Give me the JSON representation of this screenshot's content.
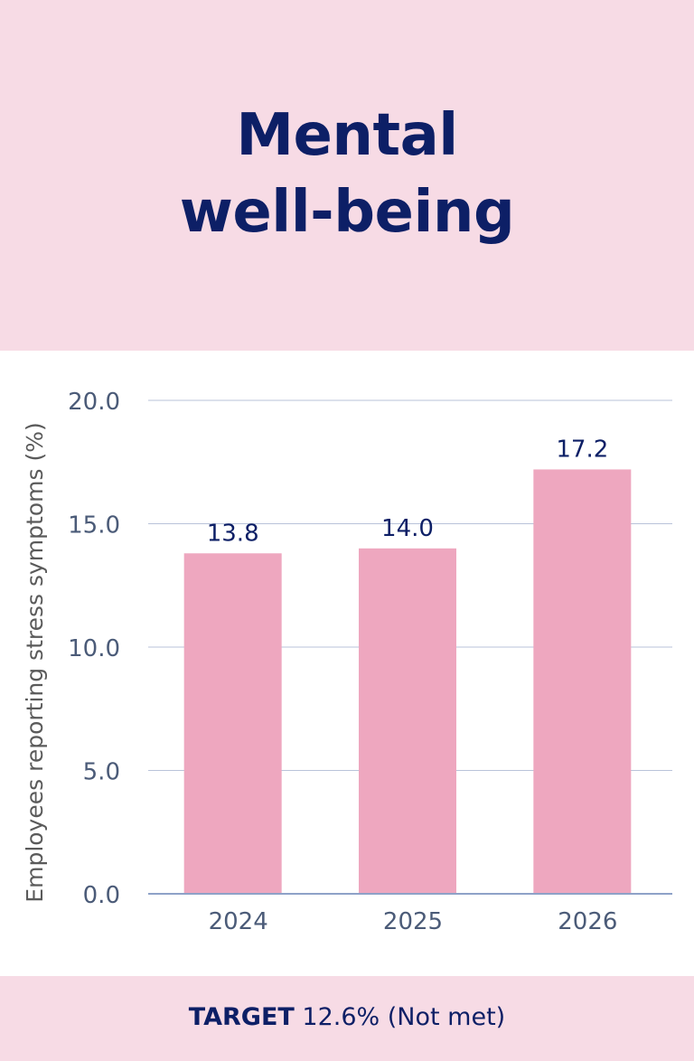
{
  "title_lines": [
    "Mental",
    "well-being"
  ],
  "chart_data": {
    "type": "bar",
    "categories": [
      "2024",
      "2025",
      "2026"
    ],
    "values": [
      13.8,
      14.0,
      17.2
    ],
    "value_labels": [
      "13.8",
      "14.0",
      "17.2"
    ],
    "ylabel": "Employees reporting stress symptoms (%)",
    "xlabel": "",
    "ylim": [
      0,
      20
    ],
    "yticks": [
      0,
      5,
      10,
      15,
      20
    ],
    "ytick_labels": [
      "0.0",
      "5.0",
      "10.0",
      "15.0",
      "20.0"
    ],
    "grid": true,
    "bar_color": "#eea7bf",
    "grid_color": "#b9c3d9",
    "axis_color": "#8ea2c8",
    "tick_color": "#4b5b78",
    "value_label_color": "#0d1f66"
  },
  "footer": {
    "target_label": "TARGET",
    "target_value": "12.6% (Not met)"
  }
}
